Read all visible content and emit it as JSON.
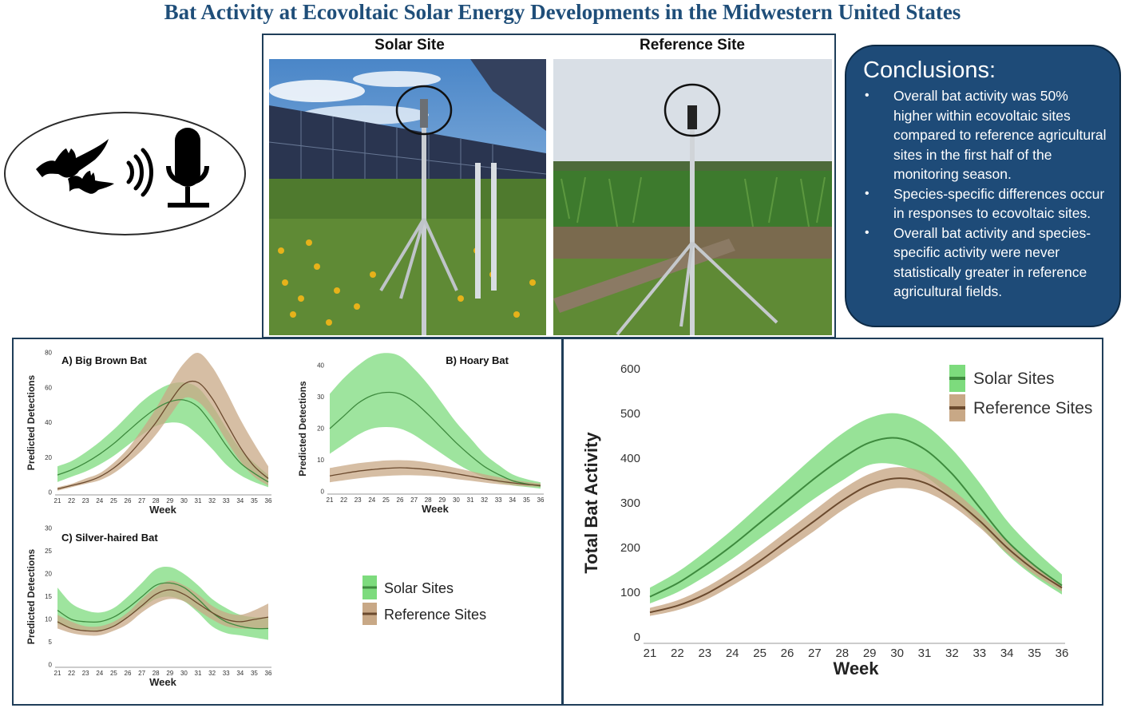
{
  "title": "Bat Activity at Ecovoltaic Solar Energy Developments in the Midwestern United States",
  "icons": [
    "bat-icon",
    "sound-wave-icon",
    "microphone-icon"
  ],
  "photos": {
    "solar_label": "Solar Site",
    "reference_label": "Reference Site"
  },
  "conclusions": {
    "heading": "Conclusions:",
    "bullets": [
      "Overall bat activity was 50% higher within ecovoltaic sites compared to reference agricultural sites in the first half of the monitoring season.",
      "Species-specific differences occur in responses to ecovoltaic sites.",
      "Overall bat activity and species-specific activity were never statistically greater in reference agricultural fields."
    ]
  },
  "colors": {
    "title": "#1f4e79",
    "solar_band": "#7ddb7d",
    "solar_line": "#3e8a3e",
    "reference_band": "#c8a886",
    "reference_line": "#6b4a2e",
    "conclusions_bg": "#1e4b78"
  },
  "legend": {
    "solar": "Solar Sites",
    "reference": "Reference Sites"
  },
  "chart_data": [
    {
      "id": "big-brown",
      "type": "line",
      "title": "A) Big Brown Bat",
      "xlabel": "Week",
      "ylabel": "Predicted Detections",
      "xlim": [
        21,
        36
      ],
      "ylim": [
        0,
        80
      ],
      "yticks": [
        0,
        20,
        40,
        60,
        80
      ],
      "xticks": [
        21,
        22,
        23,
        24,
        25,
        26,
        27,
        28,
        29,
        30,
        31,
        32,
        33,
        34,
        35,
        36
      ],
      "series": [
        {
          "name": "Solar Sites",
          "x": [
            21,
            22,
            23,
            24,
            25,
            26,
            27,
            28,
            29,
            30,
            31,
            32,
            33,
            34,
            35,
            36
          ],
          "values": [
            10,
            13,
            17,
            22,
            28,
            35,
            42,
            48,
            52,
            53,
            49,
            39,
            27,
            17,
            11,
            6
          ],
          "lower": [
            6,
            9,
            12,
            16,
            21,
            27,
            33,
            38,
            40,
            39,
            33,
            25,
            16,
            10,
            6,
            3
          ],
          "upper": [
            15,
            18,
            23,
            29,
            36,
            44,
            52,
            58,
            62,
            63,
            60,
            50,
            37,
            25,
            17,
            10
          ]
        },
        {
          "name": "Reference Sites",
          "x": [
            21,
            22,
            23,
            24,
            25,
            26,
            27,
            28,
            29,
            30,
            31,
            32,
            33,
            34,
            35,
            36
          ],
          "values": [
            2,
            4,
            6,
            9,
            14,
            21,
            30,
            40,
            52,
            62,
            63,
            54,
            40,
            26,
            15,
            8
          ],
          "lower": [
            1,
            3,
            5,
            7,
            11,
            17,
            24,
            33,
            44,
            54,
            52,
            43,
            30,
            18,
            9,
            4
          ],
          "upper": [
            3,
            5,
            8,
            11,
            17,
            25,
            36,
            48,
            62,
            74,
            80,
            72,
            58,
            42,
            28,
            15
          ]
        }
      ]
    },
    {
      "id": "hoary",
      "type": "line",
      "title": "B) Hoary Bat",
      "xlabel": "Week",
      "ylabel": "Predicted Detections",
      "xlim": [
        21,
        36
      ],
      "ylim": [
        0,
        40
      ],
      "yticks": [
        0,
        10,
        20,
        30,
        40
      ],
      "xticks": [
        21,
        22,
        23,
        24,
        25,
        26,
        27,
        28,
        29,
        30,
        31,
        32,
        33,
        34,
        35,
        36
      ],
      "series": [
        {
          "name": "Solar Sites",
          "x": [
            21,
            22,
            23,
            24,
            25,
            26,
            27,
            28,
            29,
            30,
            31,
            32,
            33,
            34,
            35,
            36
          ],
          "values": [
            20,
            24,
            28,
            30.5,
            31.5,
            31,
            28.5,
            24.5,
            20,
            15.5,
            11.5,
            8,
            5.5,
            3.5,
            2.5,
            1.8
          ],
          "lower": [
            12,
            15,
            18,
            20,
            20.5,
            20,
            18,
            15,
            12,
            9,
            6.5,
            4.5,
            3,
            2,
            1.5,
            1
          ],
          "upper": [
            31,
            36,
            40,
            43,
            44,
            43,
            39,
            34,
            28,
            22,
            17,
            12,
            8.5,
            5.5,
            4,
            3
          ]
        },
        {
          "name": "Reference Sites",
          "x": [
            21,
            22,
            23,
            24,
            25,
            26,
            27,
            28,
            29,
            30,
            31,
            32,
            33,
            34,
            35,
            36
          ],
          "values": [
            5,
            5.8,
            6.5,
            7,
            7.4,
            7.6,
            7.4,
            7,
            6.4,
            5.7,
            4.9,
            4.1,
            3.4,
            2.8,
            2.3,
            2
          ],
          "lower": [
            3,
            3.6,
            4.2,
            4.7,
            5,
            5.2,
            5.2,
            5,
            4.6,
            4,
            3.5,
            2.9,
            2.4,
            2,
            1.7,
            1.5
          ],
          "upper": [
            7.5,
            8.3,
            9,
            9.5,
            9.9,
            10,
            9.8,
            9.2,
            8.4,
            7.5,
            6.5,
            5.5,
            4.6,
            3.8,
            3.1,
            2.6
          ]
        }
      ]
    },
    {
      "id": "silver-haired",
      "type": "line",
      "title": "C) Silver-haired Bat",
      "xlabel": "Week",
      "ylabel": "Predicted Detections",
      "xlim": [
        21,
        36
      ],
      "ylim": [
        0,
        30
      ],
      "yticks": [
        0,
        5,
        10,
        15,
        20,
        25,
        30
      ],
      "xticks": [
        21,
        22,
        23,
        24,
        25,
        26,
        27,
        28,
        29,
        30,
        31,
        32,
        33,
        34,
        35,
        36
      ],
      "series": [
        {
          "name": "Solar Sites",
          "x": [
            21,
            22,
            23,
            24,
            25,
            26,
            27,
            28,
            29,
            30,
            31,
            32,
            33,
            34,
            35,
            36
          ],
          "values": [
            12,
            10,
            9.5,
            9.5,
            10.5,
            12.5,
            15,
            17.5,
            18,
            17,
            14.5,
            11.5,
            9.5,
            8.5,
            8,
            8
          ],
          "lower": [
            9,
            8,
            7.5,
            7.5,
            8.5,
            10.5,
            12.5,
            14.5,
            15,
            14,
            11.5,
            8.5,
            7,
            6.5,
            6,
            5.5
          ],
          "upper": [
            17,
            13.5,
            12,
            11.5,
            12.5,
            15,
            18,
            21,
            21.5,
            20,
            17.5,
            14.5,
            12.5,
            11,
            10.5,
            10.5
          ]
        },
        {
          "name": "Reference Sites",
          "x": [
            21,
            22,
            23,
            24,
            25,
            26,
            27,
            28,
            29,
            30,
            31,
            32,
            33,
            34,
            35,
            36
          ],
          "values": [
            9.5,
            8,
            7.5,
            7.5,
            8.5,
            10.5,
            13,
            15.5,
            16.5,
            15.5,
            13.5,
            11.5,
            10,
            9.5,
            10,
            10.5
          ],
          "lower": [
            8,
            7,
            6.5,
            6.5,
            7.5,
            9,
            11.5,
            13.5,
            14.5,
            14,
            12,
            10,
            8.5,
            8,
            8,
            8
          ],
          "upper": [
            11,
            9.5,
            8.5,
            8.5,
            9.5,
            11.5,
            14.5,
            17,
            18.5,
            17.5,
            15.5,
            13,
            11.5,
            11,
            12,
            13.5
          ]
        }
      ]
    },
    {
      "id": "total",
      "type": "line",
      "title": "",
      "xlabel": "Week",
      "ylabel": "Total Bat Activity",
      "xlim": [
        21,
        36
      ],
      "ylim": [
        0,
        600
      ],
      "yticks": [
        0,
        100,
        200,
        300,
        400,
        500,
        600
      ],
      "xticks": [
        21,
        22,
        23,
        24,
        25,
        26,
        27,
        28,
        29,
        30,
        31,
        32,
        33,
        34,
        35,
        36
      ],
      "series": [
        {
          "name": "Solar Sites",
          "x": [
            21,
            22,
            23,
            24,
            25,
            26,
            27,
            28,
            29,
            30,
            31,
            32,
            33,
            34,
            35,
            36
          ],
          "values": [
            90,
            120,
            160,
            205,
            255,
            305,
            355,
            400,
            435,
            445,
            420,
            365,
            290,
            215,
            160,
            115
          ],
          "lower": [
            75,
            100,
            135,
            175,
            220,
            265,
            310,
            350,
            385,
            385,
            360,
            310,
            250,
            185,
            135,
            95
          ],
          "upper": [
            110,
            145,
            190,
            240,
            295,
            350,
            405,
            455,
            490,
            500,
            475,
            420,
            345,
            260,
            195,
            140
          ]
        },
        {
          "name": "Reference Sites",
          "x": [
            21,
            22,
            23,
            24,
            25,
            26,
            27,
            28,
            29,
            30,
            31,
            32,
            33,
            34,
            35,
            36
          ],
          "values": [
            55,
            70,
            95,
            130,
            170,
            215,
            260,
            305,
            340,
            355,
            345,
            310,
            260,
            200,
            150,
            110
          ],
          "lower": [
            47,
            60,
            82,
            115,
            153,
            195,
            238,
            283,
            318,
            333,
            325,
            293,
            245,
            188,
            140,
            102
          ],
          "upper": [
            65,
            82,
            110,
            147,
            190,
            237,
            284,
            330,
            365,
            380,
            368,
            330,
            276,
            213,
            160,
            118
          ]
        }
      ]
    }
  ]
}
